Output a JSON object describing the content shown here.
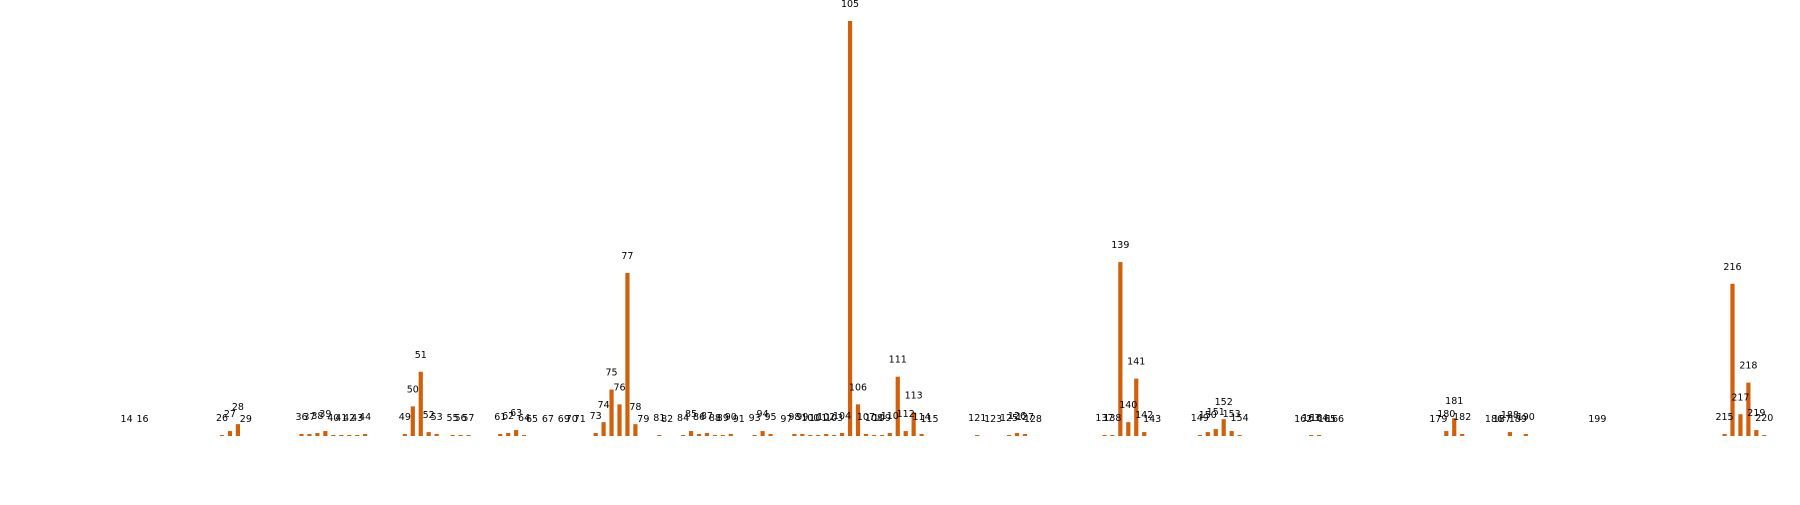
{
  "chart_data": {
    "type": "bar",
    "title": "",
    "xlabel": "",
    "ylabel": "",
    "axes_visible": false,
    "grid": false,
    "bar_color": "#d2600a",
    "ylim": [
      0,
      420
    ],
    "points": [
      {
        "label": "14",
        "value": 0
      },
      {
        "label": "16",
        "value": 0
      },
      {
        "label": "26",
        "value": 1
      },
      {
        "label": "27",
        "value": 5
      },
      {
        "label": "28",
        "value": 12
      },
      {
        "label": "29",
        "value": 0
      },
      {
        "label": "36",
        "value": 2
      },
      {
        "label": "37",
        "value": 2
      },
      {
        "label": "38",
        "value": 3
      },
      {
        "label": "39",
        "value": 5
      },
      {
        "label": "40",
        "value": 1
      },
      {
        "label": "41",
        "value": 1
      },
      {
        "label": "42",
        "value": 1
      },
      {
        "label": "43",
        "value": 1
      },
      {
        "label": "44",
        "value": 2
      },
      {
        "label": "49",
        "value": 2
      },
      {
        "label": "50",
        "value": 30
      },
      {
        "label": "51",
        "value": 65
      },
      {
        "label": "52",
        "value": 4
      },
      {
        "label": "53",
        "value": 2
      },
      {
        "label": "55",
        "value": 1
      },
      {
        "label": "56",
        "value": 1
      },
      {
        "label": "57",
        "value": 1
      },
      {
        "label": "61",
        "value": 2
      },
      {
        "label": "62",
        "value": 3
      },
      {
        "label": "63",
        "value": 6
      },
      {
        "label": "64",
        "value": 1
      },
      {
        "label": "65",
        "value": 0
      },
      {
        "label": "67",
        "value": 0
      },
      {
        "label": "69",
        "value": 0
      },
      {
        "label": "70",
        "value": 0
      },
      {
        "label": "71",
        "value": 0
      },
      {
        "label": "73",
        "value": 3
      },
      {
        "label": "74",
        "value": 14
      },
      {
        "label": "75",
        "value": 47
      },
      {
        "label": "76",
        "value": 32
      },
      {
        "label": "77",
        "value": 165
      },
      {
        "label": "78",
        "value": 12
      },
      {
        "label": "79",
        "value": 0
      },
      {
        "label": "81",
        "value": 1
      },
      {
        "label": "82",
        "value": 0
      },
      {
        "label": "84",
        "value": 1
      },
      {
        "label": "85",
        "value": 5
      },
      {
        "label": "86",
        "value": 2
      },
      {
        "label": "87",
        "value": 3
      },
      {
        "label": "88",
        "value": 1
      },
      {
        "label": "89",
        "value": 1
      },
      {
        "label": "90",
        "value": 2
      },
      {
        "label": "91",
        "value": 0
      },
      {
        "label": "93",
        "value": 1
      },
      {
        "label": "94",
        "value": 5
      },
      {
        "label": "95",
        "value": 2
      },
      {
        "label": "97",
        "value": 0
      },
      {
        "label": "98",
        "value": 2
      },
      {
        "label": "99",
        "value": 2
      },
      {
        "label": "100",
        "value": 1
      },
      {
        "label": "101",
        "value": 1
      },
      {
        "label": "102",
        "value": 2
      },
      {
        "label": "103",
        "value": 1
      },
      {
        "label": "104",
        "value": 3
      },
      {
        "label": "105",
        "value": 420
      },
      {
        "label": "106",
        "value": 32
      },
      {
        "label": "107",
        "value": 2
      },
      {
        "label": "108",
        "value": 1
      },
      {
        "label": "109",
        "value": 1
      },
      {
        "label": "110",
        "value": 3
      },
      {
        "label": "111",
        "value": 60
      },
      {
        "label": "112",
        "value": 5
      },
      {
        "label": "113",
        "value": 24
      },
      {
        "label": "114",
        "value": 2
      },
      {
        "label": "115",
        "value": 0
      },
      {
        "label": "121",
        "value": 1
      },
      {
        "label": "123",
        "value": 0
      },
      {
        "label": "125",
        "value": 1
      },
      {
        "label": "126",
        "value": 3
      },
      {
        "label": "127",
        "value": 2
      },
      {
        "label": "128",
        "value": 0
      },
      {
        "label": "137",
        "value": 1
      },
      {
        "label": "138",
        "value": 1
      },
      {
        "label": "139",
        "value": 176
      },
      {
        "label": "140",
        "value": 14
      },
      {
        "label": "141",
        "value": 58
      },
      {
        "label": "142",
        "value": 4
      },
      {
        "label": "143",
        "value": 0
      },
      {
        "label": "149",
        "value": 1
      },
      {
        "label": "150",
        "value": 4
      },
      {
        "label": "151",
        "value": 7
      },
      {
        "label": "152",
        "value": 17
      },
      {
        "label": "153",
        "value": 5
      },
      {
        "label": "154",
        "value": 1
      },
      {
        "label": "162",
        "value": 0
      },
      {
        "label": "163",
        "value": 1
      },
      {
        "label": "164",
        "value": 1
      },
      {
        "label": "165",
        "value": 0
      },
      {
        "label": "166",
        "value": 0
      },
      {
        "label": "179",
        "value": 0
      },
      {
        "label": "180",
        "value": 5
      },
      {
        "label": "181",
        "value": 18
      },
      {
        "label": "182",
        "value": 2
      },
      {
        "label": "186",
        "value": 0
      },
      {
        "label": "187",
        "value": 0
      },
      {
        "label": "188",
        "value": 4
      },
      {
        "label": "189",
        "value": 0
      },
      {
        "label": "190",
        "value": 2
      },
      {
        "label": "199",
        "value": 0
      },
      {
        "label": "215",
        "value": 2
      },
      {
        "label": "216",
        "value": 154
      },
      {
        "label": "217",
        "value": 22
      },
      {
        "label": "218",
        "value": 54
      },
      {
        "label": "219",
        "value": 6
      },
      {
        "label": "220",
        "value": 1
      }
    ]
  }
}
